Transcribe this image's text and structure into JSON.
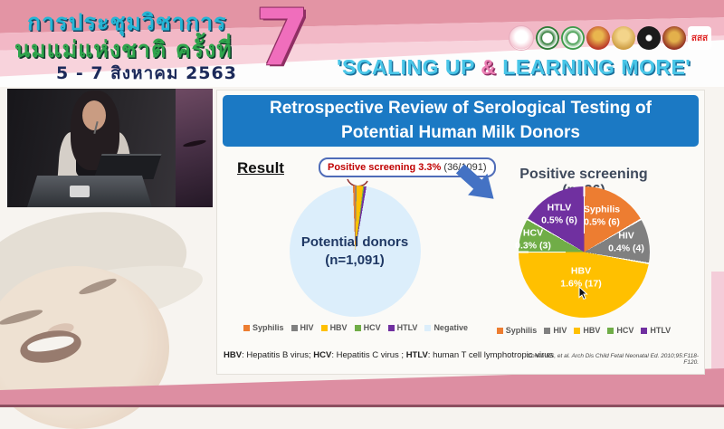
{
  "header": {
    "conference_title_line1": "การประชุมวิชาการ",
    "conference_title_line2": "นมแม่แห่งชาติ ครั้งที่",
    "conference_dates": "5 - 7 สิงหาคม 2563",
    "edition_number": "7",
    "slogan": {
      "open": "'SCALING UP ",
      "amp": "&",
      "close": " LEARNING MORE'"
    },
    "logos": [
      "logo-mother-and-child",
      "logo-green-seal-1",
      "logo-green-seal-2",
      "logo-red-royal-emblem",
      "logo-gold-royal-emblem",
      "logo-black-seal",
      "logo-red-crest",
      "logo-thai-health-sss"
    ],
    "sss_logo_text": "สสส"
  },
  "slide": {
    "title": "Retrospective Review of Serological Testing of Potential Human Milk Donors",
    "result_label": "Result",
    "callout": {
      "highlight": "Positive screening 3.3%",
      "detail": " (36/1091)"
    },
    "footnote": [
      {
        "abbr": "HBV",
        "text": ": Hepatitis B virus; "
      },
      {
        "abbr": "HCV",
        "text": ": Hepatitis C virus ; "
      },
      {
        "abbr": "HTLV",
        "text": ": human T cell lymphotropic virus"
      }
    ],
    "citation": "Cohen RS, et al. Arch Dis Child Fetal Neonatal Ed. 2010;95:F118-F120."
  },
  "chart_data": [
    {
      "type": "pie",
      "title": "Potential donors (n=1,091)",
      "center_label": [
        "Potential donors",
        "(n=1,091)"
      ],
      "total": 1091,
      "rotate": -2,
      "slice_gap_deg": 0,
      "annotation": "Positive screening 3.3% (36/1091)",
      "legend_position": "bottom",
      "slices": [
        {
          "label": "Syphilis",
          "value": 6,
          "color": "#ed7d31"
        },
        {
          "label": "HIV",
          "value": 4,
          "color": "#808080"
        },
        {
          "label": "HBV",
          "value": 17,
          "color": "#ffc000"
        },
        {
          "label": "HCV",
          "value": 3,
          "color": "#70ad47"
        },
        {
          "label": "HTLV",
          "value": 6,
          "color": "#7030a0"
        },
        {
          "label": "Negative",
          "value": 1055,
          "color": "#dceefb"
        }
      ]
    },
    {
      "type": "pie",
      "title": "Positive screening (n=36)",
      "total": 36,
      "rotate": 0,
      "slice_gap_deg": 1.4,
      "legend_position": "bottom",
      "slices": [
        {
          "label": "Syphilis",
          "value": 6,
          "display": "0.5% (6)",
          "color": "#ed7d31"
        },
        {
          "label": "HIV",
          "value": 4,
          "display": "0.4% (4)",
          "color": "#808080"
        },
        {
          "label": "HBV",
          "value": 17,
          "display": "1.6% (17)",
          "color": "#ffc000"
        },
        {
          "label": "HCV",
          "value": 3,
          "display": "0.3% (3)",
          "color": "#70ad47"
        },
        {
          "label": "HTLV",
          "value": 6,
          "display": "0.5% (6)",
          "color": "#7030a0"
        }
      ]
    }
  ],
  "colors": {
    "banner_blue": "#1b79c4",
    "accent_red": "#c00000",
    "navy_text": "#1f3864",
    "arrow_blue": "#4472c4",
    "header_pink": "#e394a4",
    "band_pink": "#dd8ea2"
  }
}
